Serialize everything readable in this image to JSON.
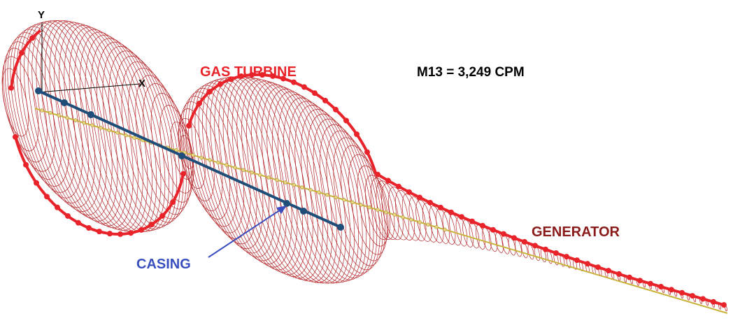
{
  "axes": {
    "y_label": "Y",
    "x_label": "X"
  },
  "labels": {
    "gas_turbine": "GAS TURBINE",
    "mode": "M13 = 3,249 CPM",
    "generator": "GENERATOR",
    "casing": "CASING"
  }
}
